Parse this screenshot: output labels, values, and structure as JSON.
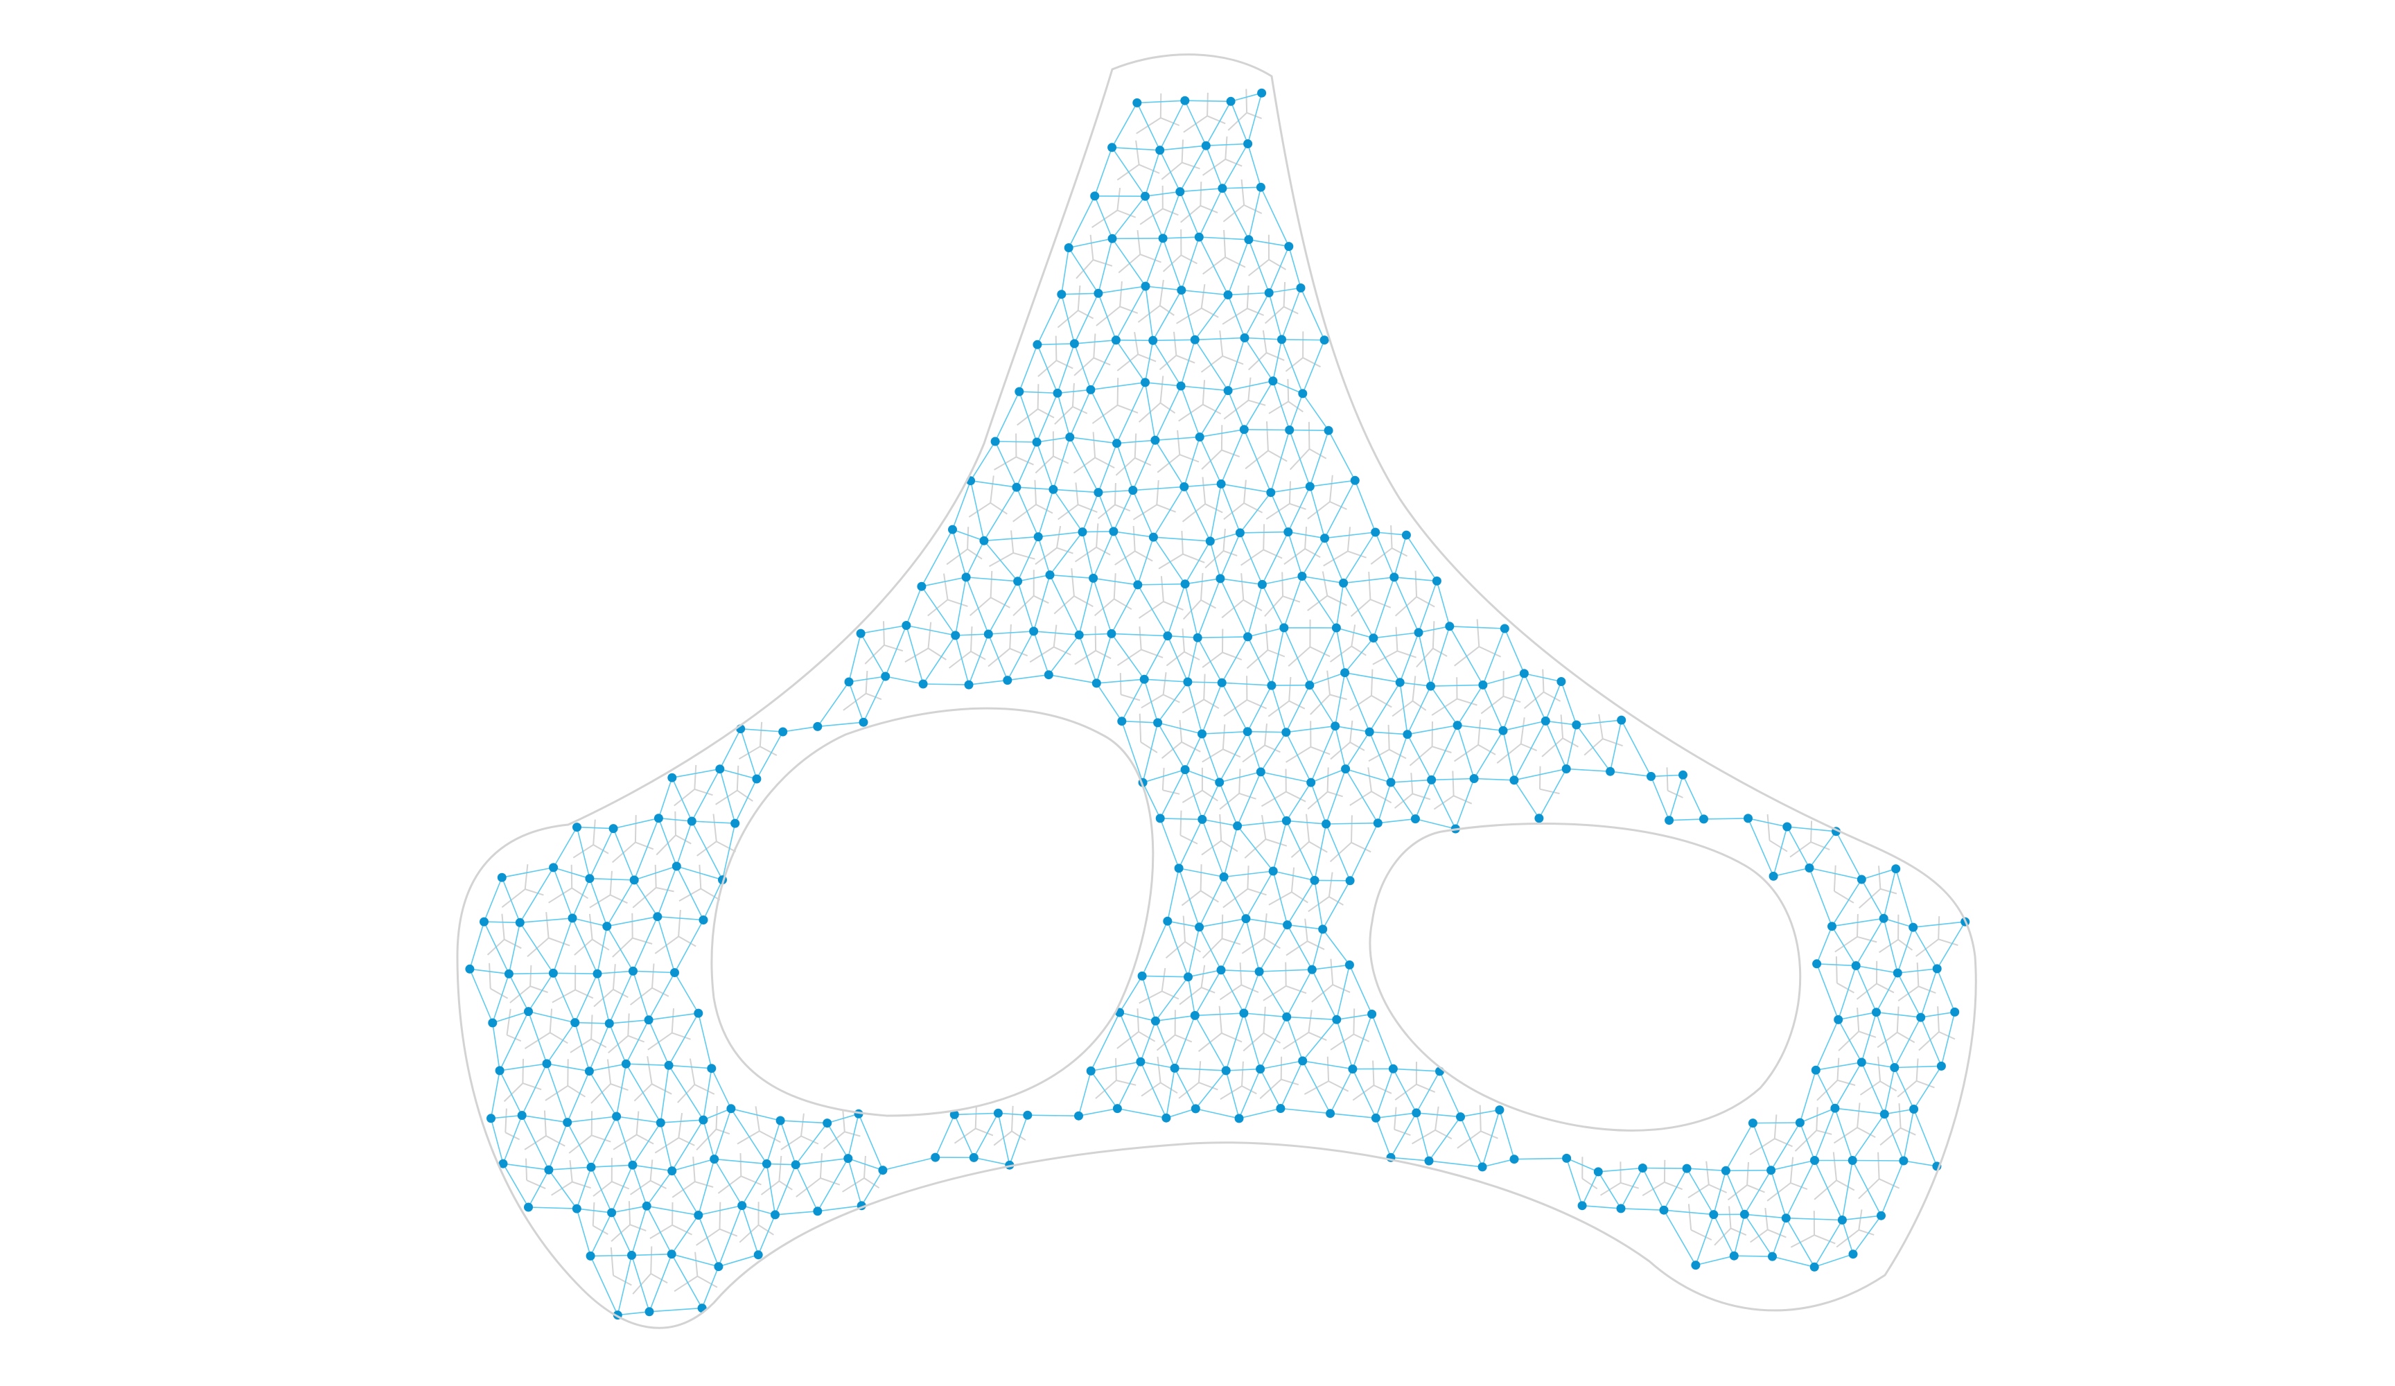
{
  "diagram": {
    "kind": "dual-mesh-wireframe",
    "background_color": "#ffffff",
    "primal_mesh_color": "#d3d3d3",
    "dual_mesh_edge_color": "#5ccbef",
    "node_color": "#0a93d1",
    "shape": "three-lobed surface with two holes",
    "labels": []
  }
}
